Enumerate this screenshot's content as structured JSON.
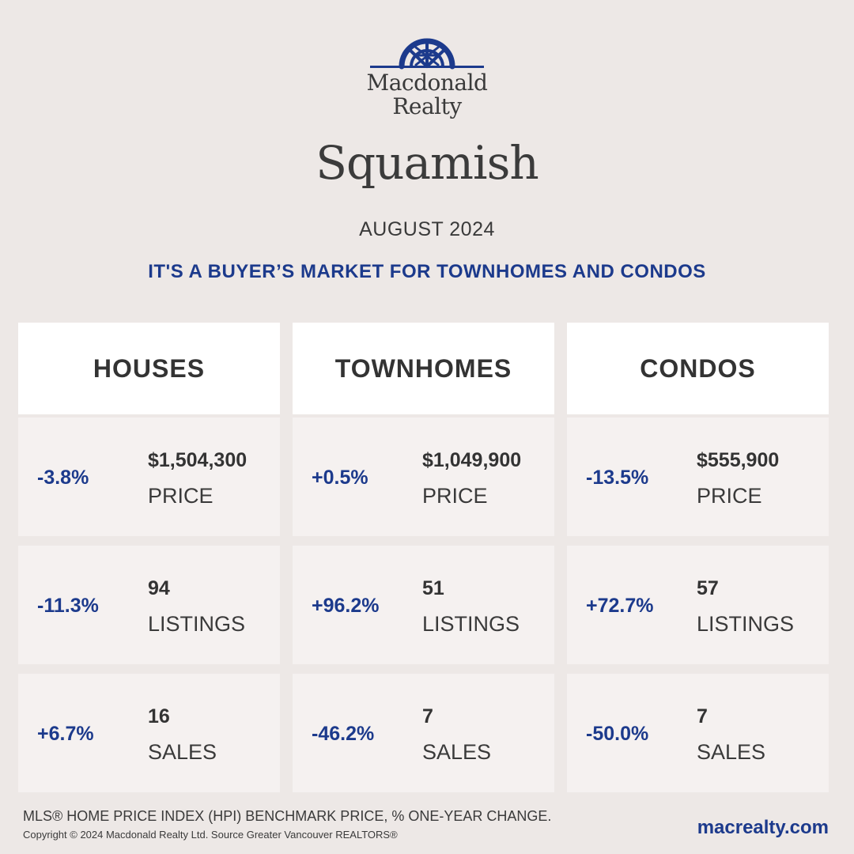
{
  "brand": {
    "logo_icon": "macdonald-realty-dome-icon",
    "name_line1": "Macdonald",
    "name_line2": "Realty",
    "accent_color": "#1c3a8c"
  },
  "city": "Squamish",
  "month": "AUGUST 2024",
  "headline": "IT'S A BUYER’S MARKET FOR TOWNHOMES AND CONDOS",
  "columns": [
    {
      "title": "HOUSES",
      "price": {
        "change": "-3.8%",
        "value": "$1,504,300",
        "label": "PRICE"
      },
      "listings": {
        "change": "-11.3%",
        "value": "94",
        "label": "LISTINGS"
      },
      "sales": {
        "change": "+6.7%",
        "value": "16",
        "label": "SALES"
      }
    },
    {
      "title": "TOWNHOMES",
      "price": {
        "change": "+0.5%",
        "value": "$1,049,900",
        "label": "PRICE"
      },
      "listings": {
        "change": "+96.2%",
        "value": "51",
        "label": "LISTINGS"
      },
      "sales": {
        "change": "-46.2%",
        "value": "7",
        "label": "SALES"
      }
    },
    {
      "title": "CONDOS",
      "price": {
        "change": "-13.5%",
        "value": "$555,900",
        "label": "PRICE"
      },
      "listings": {
        "change": "+72.7%",
        "value": "57",
        "label": "LISTINGS"
      },
      "sales": {
        "change": "-50.0%",
        "value": "7",
        "label": "SALES"
      }
    }
  ],
  "footnote": "MLS® HOME PRICE INDEX (HPI) BENCHMARK PRICE, % ONE-YEAR CHANGE.",
  "copyright": "Copyright © 2024 Macdonald Realty Ltd. Source Greater Vancouver REALTORS®",
  "website": "macrealty.com"
}
